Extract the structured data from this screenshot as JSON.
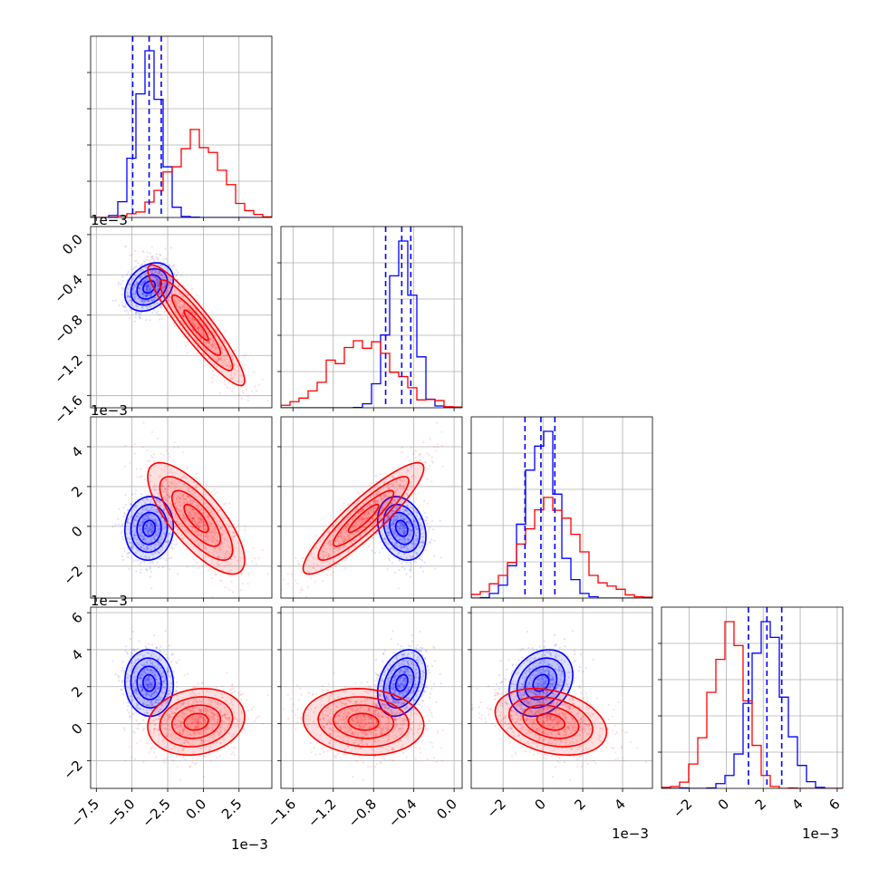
{
  "chart_data": {
    "type": "corner",
    "colors": {
      "blue": "#0000ff",
      "red": "#ff0000"
    },
    "grid": true,
    "quantile_lines": "dashed, blue series only",
    "parameters": [
      {
        "range": [
          -0.0079,
          0.0048
        ],
        "ticks": [
          -0.0075,
          -0.005,
          -0.0025,
          0.0,
          0.0025
        ],
        "tick_labels": [
          "−7.5",
          "−5.0",
          "−2.5",
          "0.0",
          "2.5"
        ],
        "offset_label": "1e−3"
      },
      {
        "range": [
          -0.00172,
          8e-05
        ],
        "ticks": [
          -0.0016,
          -0.0012,
          -0.0008,
          -0.0004,
          0.0
        ],
        "tick_labels": [
          "−1.6",
          "−1.2",
          "−0.8",
          "−0.4",
          "0.0"
        ],
        "offset_label": "1e−3"
      },
      {
        "range": [
          -0.0036,
          0.0055
        ],
        "ticks": [
          -0.002,
          0.0,
          0.002,
          0.004
        ],
        "tick_labels": [
          "−2",
          "0",
          "2",
          "4"
        ],
        "offset_label": "1e−3"
      },
      {
        "range": [
          -0.0035,
          0.0063
        ],
        "ticks": [
          -0.002,
          0.0,
          0.002,
          0.004,
          0.006
        ],
        "tick_labels": [
          "−2",
          "0",
          "2",
          "4",
          "6"
        ],
        "offset_label": "1e−3"
      }
    ],
    "series": [
      {
        "color": "blue",
        "mean": [
          -0.0038,
          -0.00052,
          -0.0001,
          0.0022
        ],
        "std": [
          0.00085,
          0.00012,
          0.0008,
          0.0009
        ],
        "corr": [
          [
            1,
            0.3,
            0.05,
            -0.05
          ],
          [
            0.3,
            1,
            -0.25,
            0.3
          ],
          [
            0.05,
            -0.25,
            1,
            0.25
          ],
          [
            -0.05,
            0.3,
            0.25,
            1
          ]
        ],
        "quantiles": [
          [
            -0.00495,
            -0.0038,
            -0.00295
          ],
          [
            -0.00068,
            -0.00052,
            -0.00043
          ],
          [
            -0.0009,
            -0.0001,
            0.0006
          ],
          [
            0.0012,
            0.0022,
            0.003
          ]
        ]
      },
      {
        "color": "red",
        "mean": [
          -0.0005,
          -0.0009,
          0.0004,
          0.0001
        ],
        "std": [
          0.0017,
          0.0003,
          0.0014,
          0.0009
        ],
        "corr": [
          [
            1,
            -0.92,
            -0.75,
            0.15
          ],
          [
            -0.92,
            1,
            0.9,
            -0.1
          ],
          [
            -0.75,
            0.9,
            1,
            -0.3
          ],
          [
            0.15,
            -0.1,
            -0.3,
            1
          ]
        ]
      }
    ]
  }
}
